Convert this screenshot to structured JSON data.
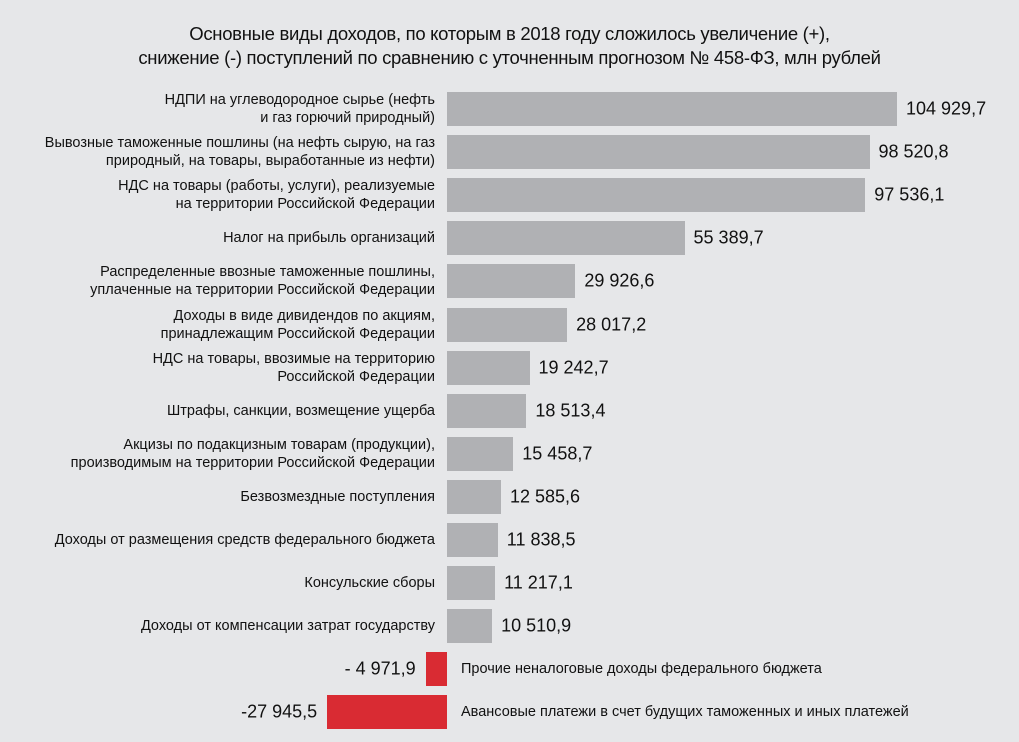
{
  "title": {
    "line1": "Основные виды доходов, по которым в 2018 году сложилось увеличение (+),",
    "line2": "снижение (-) поступлений по сравнению с уточненным прогнозом  № 458-ФЗ, млн рублей"
  },
  "colors": {
    "background": "#e6e7e9",
    "positive_bar": "#b0b1b4",
    "negative_bar": "#d92b33"
  },
  "rows": [
    {
      "label": [
        "НДПИ на углеводородное сырье (нефть",
        "и газ горючий природный)"
      ],
      "value": 104929.7,
      "value_text": "104 929,7"
    },
    {
      "label": [
        "Вывозные таможенные пошлины (на нефть сырую, на газ",
        "природный, на товары, выработанные из нефти)"
      ],
      "value": 98520.8,
      "value_text": "98 520,8"
    },
    {
      "label": [
        "НДС на товары (работы, услуги), реализуемые",
        "на территории Российской Федерации"
      ],
      "value": 97536.1,
      "value_text": "97 536,1"
    },
    {
      "label": [
        "Налог на прибыль организаций"
      ],
      "value": 55389.7,
      "value_text": "55 389,7"
    },
    {
      "label": [
        "Распределенные ввозные таможенные пошлины,",
        "уплаченные на территории Российской Федерации"
      ],
      "value": 29926.6,
      "value_text": "29  926,6"
    },
    {
      "label": [
        "Доходы в виде дивидендов по акциям,",
        "принадлежащим Российской Федерации"
      ],
      "value": 28017.2,
      "value_text": "28  017,2"
    },
    {
      "label": [
        "НДС на товары, ввозимые на территорию",
        "Российской Федерации"
      ],
      "value": 19242.7,
      "value_text": "19  242,7"
    },
    {
      "label": [
        "Штрафы, санкции, возмещение ущерба"
      ],
      "value": 18513.4,
      "value_text": "18  513,4"
    },
    {
      "label": [
        "Акцизы по подакцизным товарам (продукции),",
        "производимым на территории Российской Федерации"
      ],
      "value": 15458.7,
      "value_text": "15  458,7"
    },
    {
      "label": [
        "Безвозмездные поступления"
      ],
      "value": 12585.6,
      "value_text": "12  585,6"
    },
    {
      "label": [
        "Доходы от размещения средств федерального бюджета"
      ],
      "value": 11838.5,
      "value_text": "11  838,5"
    },
    {
      "label": [
        "Консульские сборы"
      ],
      "value": 11217.1,
      "value_text": "11  217,1"
    },
    {
      "label": [
        "Доходы от компенсации затрат государству"
      ],
      "value": 10510.9,
      "value_text": "10  510,9"
    },
    {
      "label": [
        "Прочие неналоговые доходы федерального бюджета"
      ],
      "value": -4971.9,
      "value_text": "- 4 971,9"
    },
    {
      "label": [
        "Авансовые платежи в счет будущих таможенных и иных платежей"
      ],
      "value": -27945.5,
      "value_text": "-27 945,5"
    }
  ],
  "chart_data": {
    "type": "bar",
    "orientation": "horizontal",
    "title": "Основные виды доходов, по которым в 2018 году сложилось увеличение (+), снижение (-) поступлений по сравнению с уточненным прогнозом № 458-ФЗ, млн рублей",
    "xlabel": "",
    "ylabel": "",
    "unit": "млн рублей",
    "grid": false,
    "legend": null,
    "categories": [
      "НДПИ на углеводородное сырье (нефть и газ горючий природный)",
      "Вывозные таможенные пошлины (на нефть сырую, на газ природный, на товары, выработанные из нефти)",
      "НДС на товары (работы, услуги), реализуемые на территории Российской Федерации",
      "Налог на прибыль организаций",
      "Распределенные ввозные таможенные пошлины, уплаченные на территории Российской Федерации",
      "Доходы в виде дивидендов по акциям, принадлежащим Российской Федерации",
      "НДС на товары, ввозимые на территорию Российской Федерации",
      "Штрафы, санкции, возмещение ущерба",
      "Акцизы по подакцизным товарам (продукции), производимым на территории Российской Федерации",
      "Безвозмездные поступления",
      "Доходы от размещения средств федерального бюджета",
      "Консульские сборы",
      "Доходы от компенсации затрат государству",
      "Прочие неналоговые доходы федерального бюджета",
      "Авансовые платежи в счет будущих таможенных и иных платежей"
    ],
    "values": [
      104929.7,
      98520.8,
      97536.1,
      55389.7,
      29926.6,
      28017.2,
      19242.7,
      18513.4,
      15458.7,
      12585.6,
      11838.5,
      11217.1,
      10510.9,
      -4971.9,
      -27945.5
    ],
    "colors": [
      "#b0b1b4",
      "#b0b1b4",
      "#b0b1b4",
      "#b0b1b4",
      "#b0b1b4",
      "#b0b1b4",
      "#b0b1b4",
      "#b0b1b4",
      "#b0b1b4",
      "#b0b1b4",
      "#b0b1b4",
      "#b0b1b4",
      "#b0b1b4",
      "#d92b33",
      "#d92b33"
    ],
    "xlim": [
      -27945.5,
      104929.7
    ]
  }
}
